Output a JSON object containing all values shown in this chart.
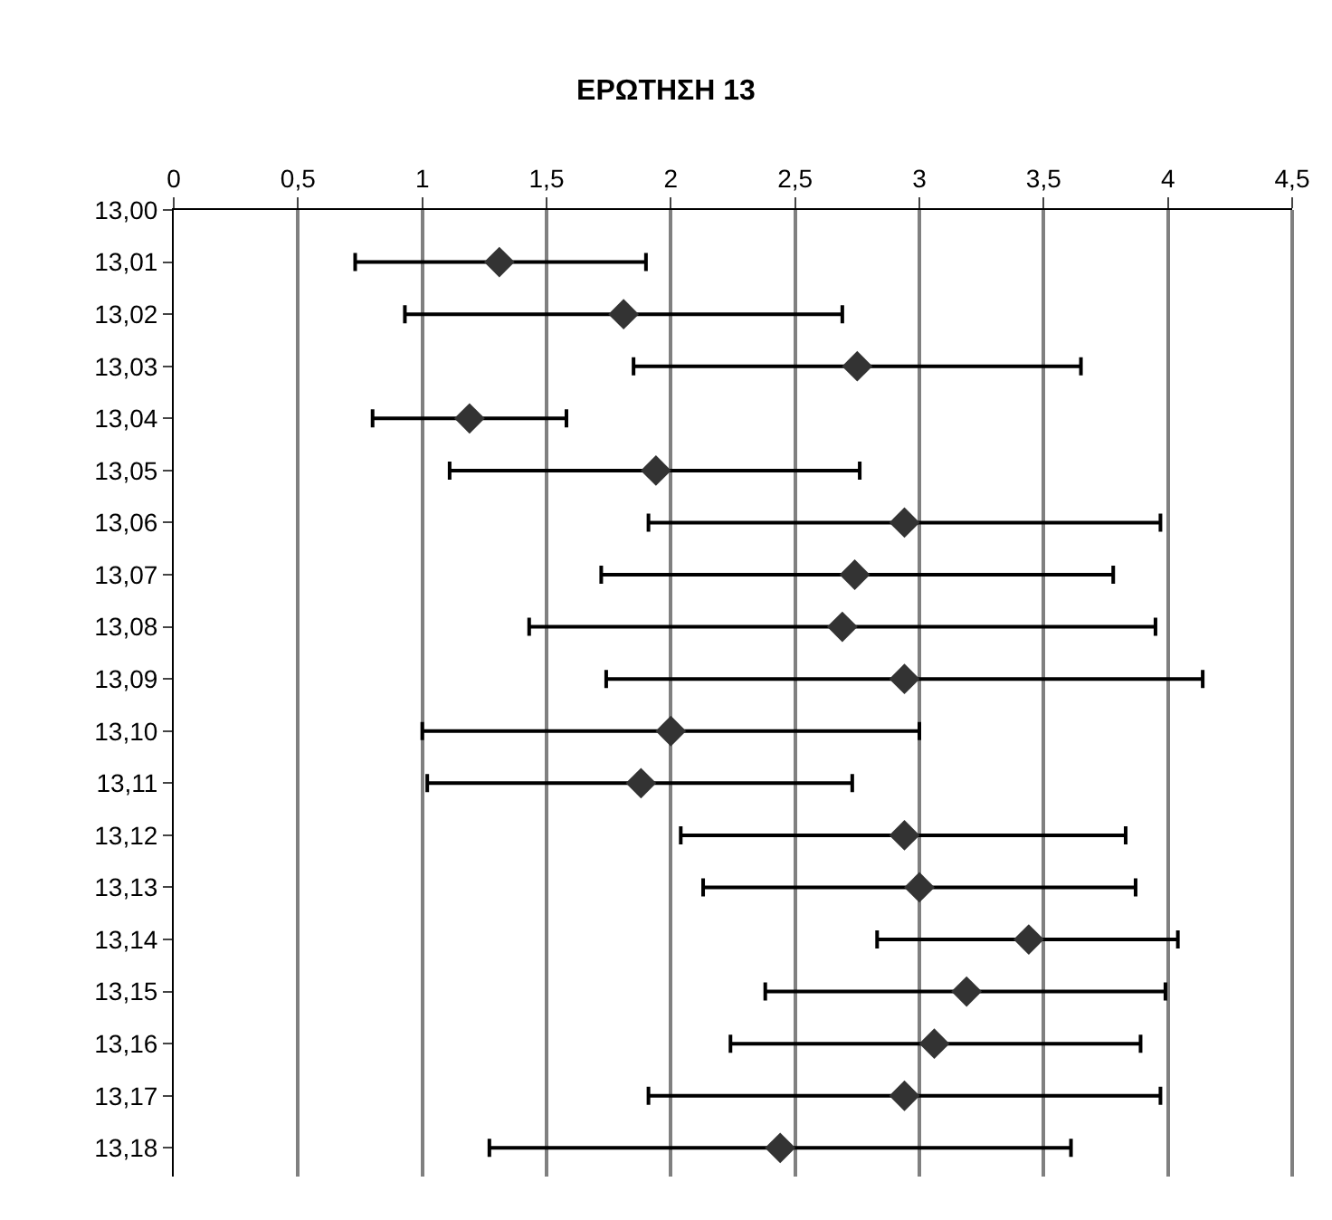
{
  "chart_data": {
    "type": "scatter",
    "orientation": "horizontal",
    "title": "ΕΡΩΤΗΣΗ 13",
    "categories": [
      "13,00",
      "13,01",
      "13,02",
      "13,03",
      "13,04",
      "13,05",
      "13,06",
      "13,07",
      "13,08",
      "13,09",
      "13,10",
      "13,11",
      "13,12",
      "13,13",
      "13,14",
      "13,15",
      "13,16",
      "13,17",
      "13,18"
    ],
    "values": [
      null,
      1.31,
      1.81,
      2.75,
      1.19,
      1.94,
      2.94,
      2.74,
      2.69,
      2.94,
      2.0,
      1.88,
      2.94,
      3.0,
      3.44,
      3.19,
      3.06,
      2.94,
      2.44
    ],
    "errors": [
      null,
      [
        0.73,
        1.9
      ],
      [
        0.93,
        2.69
      ],
      [
        1.85,
        3.65
      ],
      [
        0.8,
        1.58
      ],
      [
        1.11,
        2.76
      ],
      [
        1.91,
        3.97
      ],
      [
        1.72,
        3.78
      ],
      [
        1.43,
        3.95
      ],
      [
        1.74,
        4.14
      ],
      [
        1.0,
        3.0
      ],
      [
        1.02,
        2.73
      ],
      [
        2.04,
        3.83
      ],
      [
        2.13,
        3.87
      ],
      [
        2.83,
        4.04
      ],
      [
        2.38,
        3.99
      ],
      [
        2.24,
        3.89
      ],
      [
        1.91,
        3.97
      ],
      [
        1.27,
        3.61
      ]
    ],
    "color": "#333333",
    "marker": "diamond",
    "xlim": [
      0,
      4.5
    ],
    "xticks": [
      {
        "value": 0,
        "label": "0"
      },
      {
        "value": 0.5,
        "label": "0,5"
      },
      {
        "value": 1,
        "label": "1"
      },
      {
        "value": 1.5,
        "label": "1,5"
      },
      {
        "value": 2,
        "label": "2"
      },
      {
        "value": 2.5,
        "label": "2,5"
      },
      {
        "value": 3,
        "label": "3"
      },
      {
        "value": 3.5,
        "label": "3,5"
      },
      {
        "value": 4,
        "label": "4"
      },
      {
        "value": 4.5,
        "label": "4,5"
      }
    ],
    "grid": "x",
    "legend": false
  }
}
